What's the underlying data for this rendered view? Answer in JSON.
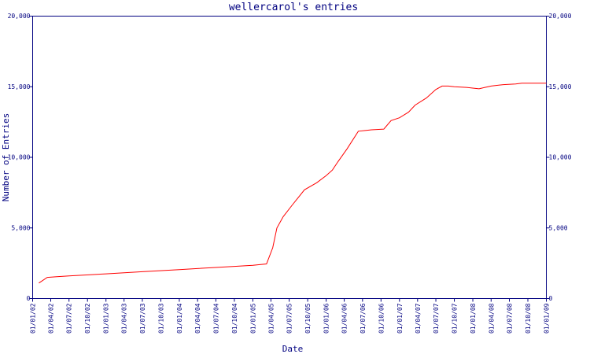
{
  "chart_data": {
    "type": "line",
    "title": "wellercarol's entries",
    "xlabel": "Date",
    "ylabel": "Number of Entries",
    "ylim": [
      0,
      20000
    ],
    "yticks": [
      {
        "value": 0,
        "label": "0"
      },
      {
        "value": 5000,
        "label": "5,000"
      },
      {
        "value": 10000,
        "label": "10,000"
      },
      {
        "value": 15000,
        "label": "15,000"
      },
      {
        "value": 20000,
        "label": "20,000"
      }
    ],
    "xlim": [
      "2002-01-01",
      "2009-01-01"
    ],
    "xticks": [
      {
        "date": "2002-01-01",
        "label": "01/01/02"
      },
      {
        "date": "2002-04-01",
        "label": "01/04/02"
      },
      {
        "date": "2002-07-01",
        "label": "01/07/02"
      },
      {
        "date": "2002-10-01",
        "label": "01/10/02"
      },
      {
        "date": "2003-01-01",
        "label": "01/01/03"
      },
      {
        "date": "2003-04-01",
        "label": "01/04/03"
      },
      {
        "date": "2003-07-01",
        "label": "01/07/03"
      },
      {
        "date": "2003-10-01",
        "label": "01/10/03"
      },
      {
        "date": "2004-01-01",
        "label": "01/01/04"
      },
      {
        "date": "2004-04-01",
        "label": "01/04/04"
      },
      {
        "date": "2004-07-01",
        "label": "01/07/04"
      },
      {
        "date": "2004-10-01",
        "label": "01/10/04"
      },
      {
        "date": "2005-01-01",
        "label": "01/01/05"
      },
      {
        "date": "2005-04-01",
        "label": "01/04/05"
      },
      {
        "date": "2005-07-01",
        "label": "01/07/05"
      },
      {
        "date": "2005-10-01",
        "label": "01/10/05"
      },
      {
        "date": "2006-01-01",
        "label": "01/01/06"
      },
      {
        "date": "2006-04-01",
        "label": "01/04/06"
      },
      {
        "date": "2006-07-01",
        "label": "01/07/06"
      },
      {
        "date": "2006-10-01",
        "label": "01/10/06"
      },
      {
        "date": "2007-01-01",
        "label": "01/01/07"
      },
      {
        "date": "2007-04-01",
        "label": "01/04/07"
      },
      {
        "date": "2007-07-01",
        "label": "01/07/07"
      },
      {
        "date": "2007-10-01",
        "label": "01/10/07"
      },
      {
        "date": "2008-01-01",
        "label": "01/01/08"
      },
      {
        "date": "2008-04-01",
        "label": "01/04/08"
      },
      {
        "date": "2008-07-01",
        "label": "01/07/08"
      },
      {
        "date": "2008-10-01",
        "label": "01/10/08"
      },
      {
        "date": "2009-01-01",
        "label": "01/01/09"
      }
    ],
    "grid": false,
    "series": [
      {
        "color": "#ff0000",
        "points": [
          {
            "x": "2002-02-01",
            "y": 1100
          },
          {
            "x": "2002-03-15",
            "y": 1500
          },
          {
            "x": "2002-05-01",
            "y": 1550
          },
          {
            "x": "2002-07-01",
            "y": 1600
          },
          {
            "x": "2003-01-01",
            "y": 1750
          },
          {
            "x": "2003-07-01",
            "y": 1900
          },
          {
            "x": "2004-01-01",
            "y": 2050
          },
          {
            "x": "2004-07-01",
            "y": 2200
          },
          {
            "x": "2005-01-01",
            "y": 2350
          },
          {
            "x": "2005-03-10",
            "y": 2450
          },
          {
            "x": "2005-04-10",
            "y": 3600
          },
          {
            "x": "2005-05-01",
            "y": 5000
          },
          {
            "x": "2005-06-01",
            "y": 5800
          },
          {
            "x": "2005-07-15",
            "y": 6600
          },
          {
            "x": "2005-09-15",
            "y": 7700
          },
          {
            "x": "2005-11-15",
            "y": 8200
          },
          {
            "x": "2006-01-01",
            "y": 8700
          },
          {
            "x": "2006-02-01",
            "y": 9100
          },
          {
            "x": "2006-03-01",
            "y": 9700
          },
          {
            "x": "2006-04-15",
            "y": 10600
          },
          {
            "x": "2006-06-10",
            "y": 11850
          },
          {
            "x": "2006-07-15",
            "y": 11900
          },
          {
            "x": "2006-08-15",
            "y": 11950
          },
          {
            "x": "2006-10-15",
            "y": 12000
          },
          {
            "x": "2006-11-20",
            "y": 12600
          },
          {
            "x": "2007-01-01",
            "y": 12800
          },
          {
            "x": "2007-02-15",
            "y": 13200
          },
          {
            "x": "2007-03-20",
            "y": 13700
          },
          {
            "x": "2007-05-15",
            "y": 14200
          },
          {
            "x": "2007-07-01",
            "y": 14800
          },
          {
            "x": "2007-08-01",
            "y": 15050
          },
          {
            "x": "2007-09-01",
            "y": 15050
          },
          {
            "x": "2007-10-01",
            "y": 15000
          },
          {
            "x": "2007-12-01",
            "y": 14950
          },
          {
            "x": "2008-01-01",
            "y": 14900
          },
          {
            "x": "2008-02-01",
            "y": 14850
          },
          {
            "x": "2008-03-01",
            "y": 14950
          },
          {
            "x": "2008-04-01",
            "y": 15050
          },
          {
            "x": "2008-06-01",
            "y": 15150
          },
          {
            "x": "2008-08-01",
            "y": 15200
          },
          {
            "x": "2008-09-01",
            "y": 15250
          },
          {
            "x": "2008-11-01",
            "y": 15250
          },
          {
            "x": "2009-01-01",
            "y": 15250
          }
        ]
      }
    ]
  }
}
